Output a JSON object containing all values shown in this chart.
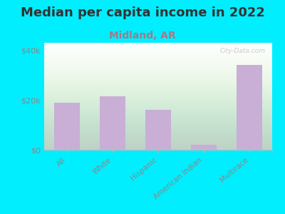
{
  "title": "Median per capita income in 2022",
  "subtitle": "Midland, AR",
  "categories": [
    "All",
    "White",
    "Hispanic",
    "American Indian",
    "Multirace"
  ],
  "values": [
    19000,
    21500,
    16000,
    2000,
    34000
  ],
  "bar_color": "#c9aed6",
  "background_outer": "#00eeff",
  "yticks": [
    0,
    20000,
    40000
  ],
  "ytick_labels": [
    "$0",
    "$20k",
    "$40k"
  ],
  "ylim": [
    0,
    43000
  ],
  "title_fontsize": 13,
  "subtitle_fontsize": 10,
  "title_color": "#333333",
  "subtitle_color": "#aa7788",
  "tick_color": "#888888",
  "watermark": "City-Data.com"
}
